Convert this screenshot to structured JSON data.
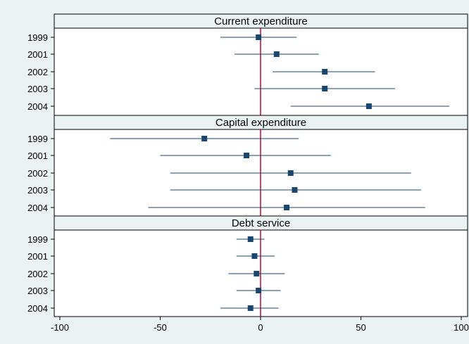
{
  "chart_data": {
    "type": "coefficient-plot",
    "x_range": [
      -100,
      100
    ],
    "x_ticks": [
      -100,
      -50,
      0,
      50,
      100
    ],
    "reference_line": 0,
    "categories": [
      "1999",
      "2001",
      "2002",
      "2003",
      "2004"
    ],
    "panels": [
      {
        "title": "Current expenditure",
        "points": [
          {
            "label": "1999",
            "estimate": -1,
            "ci": [
              -20,
              18
            ]
          },
          {
            "label": "2001",
            "estimate": 8,
            "ci": [
              -13,
              29
            ]
          },
          {
            "label": "2002",
            "estimate": 32,
            "ci": [
              6,
              57
            ]
          },
          {
            "label": "2003",
            "estimate": 32,
            "ci": [
              -3,
              67
            ]
          },
          {
            "label": "2004",
            "estimate": 54,
            "ci": [
              15,
              94
            ]
          }
        ]
      },
      {
        "title": "Capital expenditure",
        "points": [
          {
            "label": "1999",
            "estimate": -28,
            "ci": [
              -75,
              19
            ]
          },
          {
            "label": "2001",
            "estimate": -7,
            "ci": [
              -50,
              35
            ]
          },
          {
            "label": "2002",
            "estimate": 15,
            "ci": [
              -45,
              75
            ]
          },
          {
            "label": "2003",
            "estimate": 17,
            "ci": [
              -45,
              80
            ]
          },
          {
            "label": "2004",
            "estimate": 13,
            "ci": [
              -56,
              82
            ]
          }
        ]
      },
      {
        "title": "Debt service",
        "points": [
          {
            "label": "1999",
            "estimate": -5,
            "ci": [
              -12,
              2
            ]
          },
          {
            "label": "2001",
            "estimate": -3,
            "ci": [
              -12,
              7
            ]
          },
          {
            "label": "2002",
            "estimate": -2,
            "ci": [
              -16,
              12
            ]
          },
          {
            "label": "2003",
            "estimate": -1,
            "ci": [
              -12,
              10
            ]
          },
          {
            "label": "2004",
            "estimate": -5,
            "ci": [
              -20,
              9
            ]
          }
        ]
      }
    ],
    "colors": {
      "marker": "#1a476f",
      "ci_line": "#1a476f",
      "reference_line": "#c10534",
      "panel_title_bg": "#eaf2f3",
      "plot_bg": "#ffffff"
    }
  }
}
